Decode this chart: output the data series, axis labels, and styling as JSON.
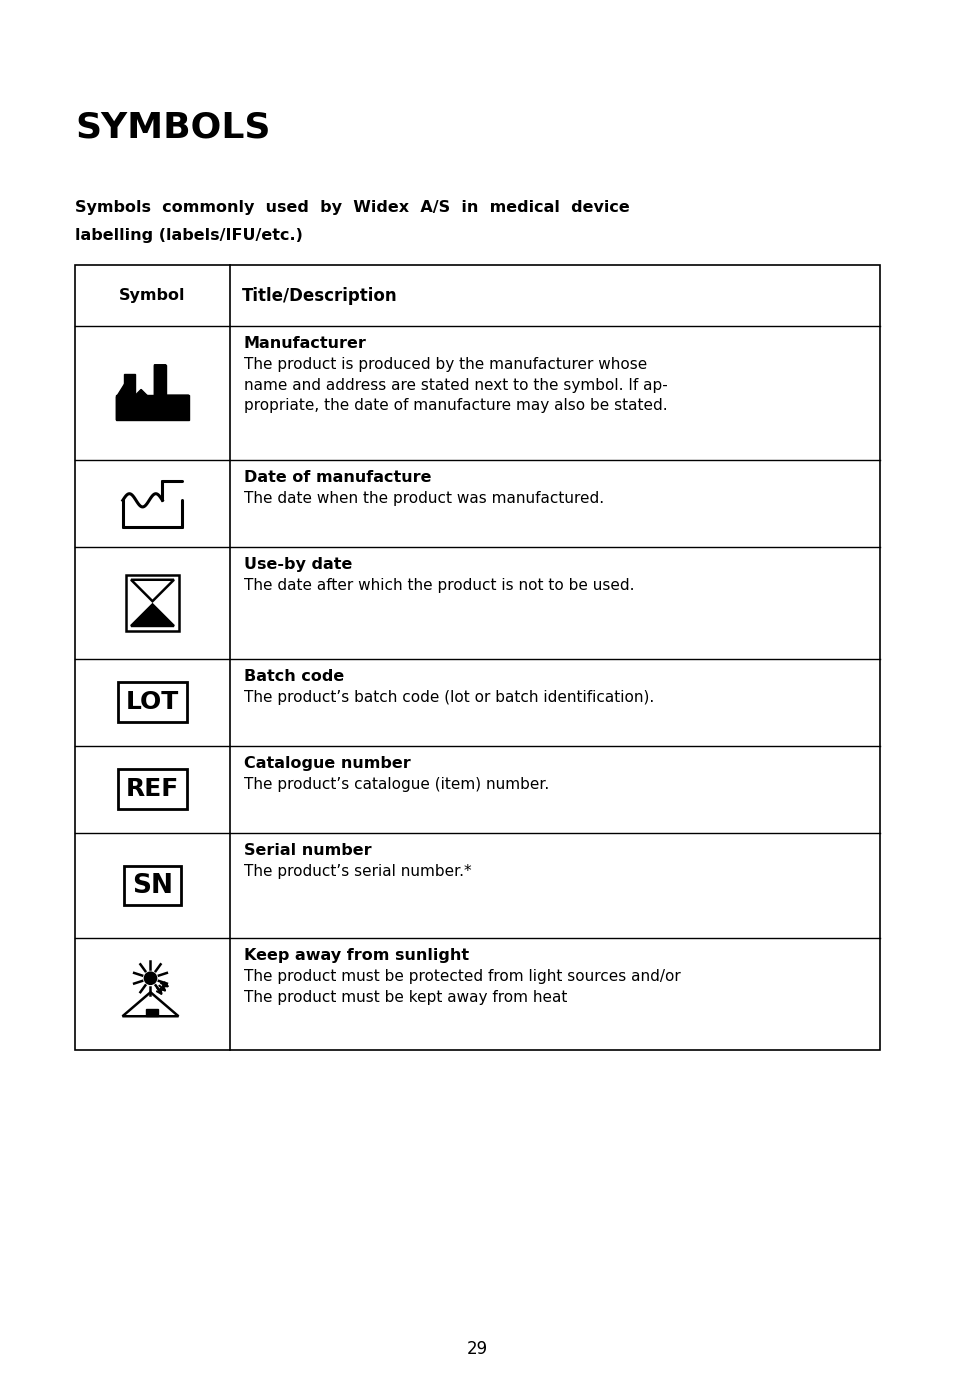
{
  "title": "SYMBOLS",
  "subtitle_line1": "Symbols  commonly  used  by  Widex  A/S  in  medical  device",
  "subtitle_line2": "labelling (labels/IFU/etc.)",
  "bg_color": "#ffffff",
  "text_color": "#000000",
  "page_number": "29",
  "table_header": [
    "Symbol",
    "Title/Description"
  ],
  "rows": [
    {
      "symbol_type": "manufacturer",
      "title": "Manufacturer",
      "description": "The product is produced by the manufacturer whose\nname and address are stated next to the symbol. If ap-\npropriate, the date of manufacture may also be stated."
    },
    {
      "symbol_type": "date_of_manufacture",
      "title": "Date of manufacture",
      "description": "The date when the product was manufactured."
    },
    {
      "symbol_type": "use_by_date",
      "title": "Use-by date",
      "description": "The date after which the product is not to be used."
    },
    {
      "symbol_type": "batch_code",
      "title": "Batch code",
      "description": "The product’s batch code (lot or batch identification)."
    },
    {
      "symbol_type": "catalogue_number",
      "title": "Catalogue number",
      "description": "The product’s catalogue (item) number."
    },
    {
      "symbol_type": "serial_number",
      "title": "Serial number",
      "description": "The product’s serial number.*"
    },
    {
      "symbol_type": "keep_away_sunlight",
      "title": "Keep away from sunlight",
      "description": "The product must be protected from light sources and/or\nThe product must be kept away from heat"
    }
  ]
}
